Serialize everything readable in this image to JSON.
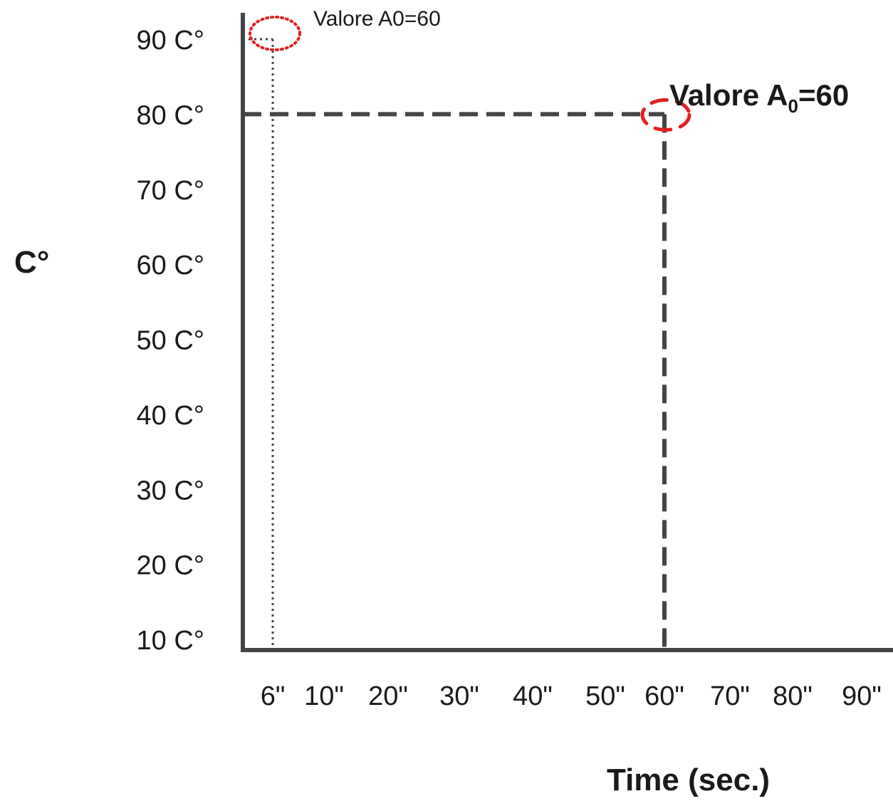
{
  "chart_data": {
    "type": "line",
    "title": "",
    "xlabel": "Time (sec.)",
    "ylabel": "C°",
    "x_ticks": [
      "6\"",
      "10\"",
      "20\"",
      "30\"",
      "40\"",
      "50\"",
      "60\"",
      "70\"",
      "80\"",
      "90\""
    ],
    "x_tick_values": [
      6,
      10,
      20,
      30,
      40,
      50,
      60,
      70,
      80,
      90
    ],
    "y_ticks": [
      "90 C°",
      "80 C°",
      "70 C°",
      "60 C°",
      "50 C°",
      "40 C°",
      "30 C°",
      "20 C°",
      "10 C°"
    ],
    "y_tick_values": [
      90,
      80,
      70,
      60,
      50,
      40,
      30,
      20,
      10
    ],
    "grid": false,
    "reference_lines": [
      {
        "x": 6,
        "y": 90,
        "style": "dotted"
      },
      {
        "x": 60,
        "y": 80,
        "style": "dashed"
      }
    ],
    "annotations": [
      {
        "text": "Valore A0=60",
        "x": 6,
        "y": 90,
        "marker_color": "#e02020",
        "marker_style": "dotted"
      },
      {
        "text_main": "Valore A",
        "text_sub": "0",
        "text_tail": "=60",
        "x": 60,
        "y": 80,
        "marker_color": "#e02020",
        "marker_style": "dashed"
      }
    ],
    "colors": {
      "axis": "#444444",
      "guide": "#444444",
      "marker": "#e02020"
    }
  }
}
